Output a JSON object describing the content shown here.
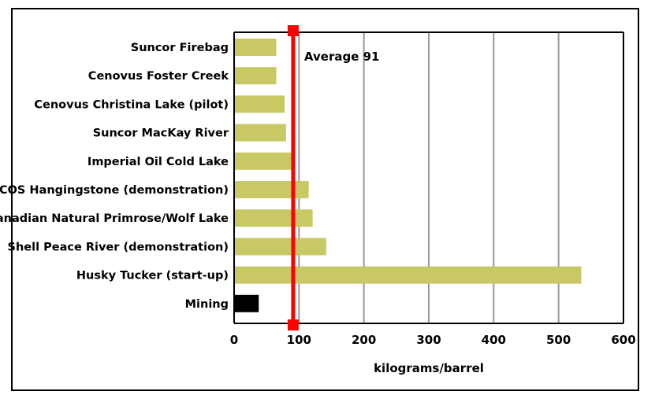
{
  "chart_data": {
    "type": "bar",
    "orientation": "horizontal",
    "categories": [
      "Suncor Firebag",
      "Cenovus Foster Creek",
      "Cenovus Christina Lake (pilot)",
      "Suncor MacKay River",
      "Imperial Oil Cold Lake",
      "JACOS Hangingstone (demonstration)",
      "Canadian Natural Primrose/Wolf Lake",
      "Shell Peace River (demonstration)",
      "Husky Tucker (start-up)",
      "Mining"
    ],
    "values": [
      65,
      65,
      78,
      80,
      88,
      115,
      121,
      142,
      535,
      38
    ],
    "bar_colors": [
      "#c8c864",
      "#c8c864",
      "#c8c864",
      "#c8c864",
      "#c8c864",
      "#c8c864",
      "#c8c864",
      "#c8c864",
      "#c8c864",
      "#000000"
    ],
    "xlabel": "kilograms/barrel",
    "ylabel": "",
    "xlim": [
      0,
      600
    ],
    "xticks": [
      0,
      100,
      200,
      300,
      400,
      500,
      600
    ],
    "grid": "vertical",
    "gridline_color": "#999999",
    "reference_line": {
      "value": 91,
      "label": "Average 91",
      "color": "#ff0000"
    }
  }
}
